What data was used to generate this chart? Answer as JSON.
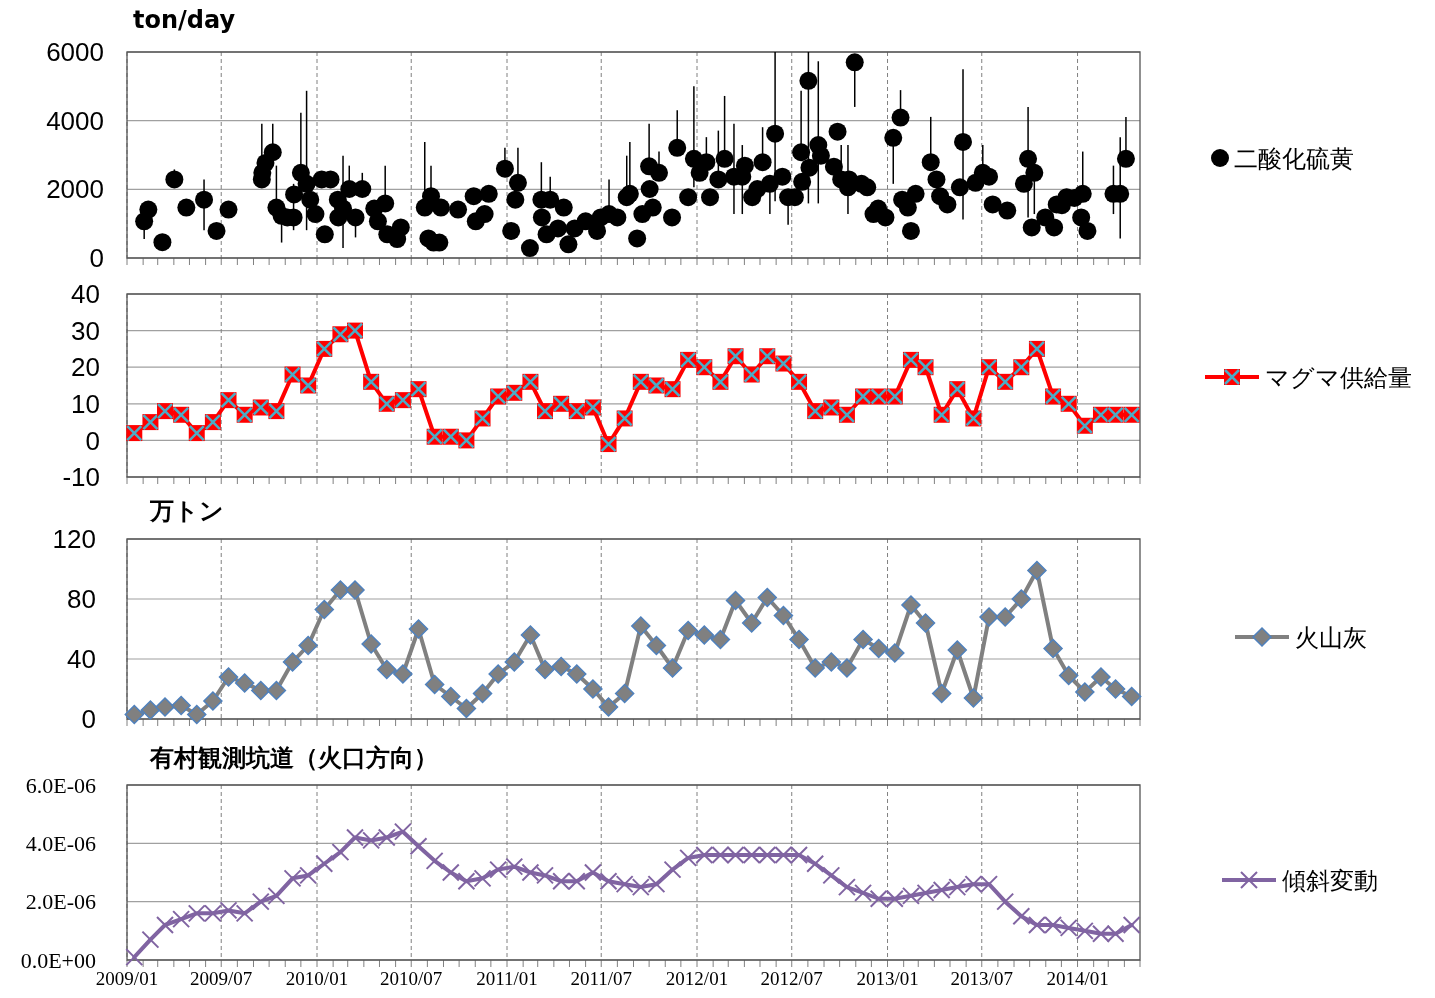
{
  "chart_data": [
    {
      "type": "scatter",
      "ylabel": "ton/day",
      "xlim": [
        "2009-01-01",
        "2014-05-01"
      ],
      "ylim": [
        0,
        6000
      ],
      "yticks": [
        0,
        2000,
        4000,
        6000
      ],
      "xticks": [
        {
          "value": "2009-01-01",
          "label": null
        },
        {
          "value": "2009-07-01",
          "label": null
        },
        {
          "value": "2010-01-01",
          "label": null
        },
        {
          "value": "2010-07-01",
          "label": null
        },
        {
          "value": "2011-01-01",
          "label": null
        },
        {
          "value": "2011-07-01",
          "label": null
        },
        {
          "value": "2012-01-01",
          "label": null
        },
        {
          "value": "2012-07-01",
          "label": null
        },
        {
          "value": "2013-01-01",
          "label": null
        },
        {
          "value": "2013-07-01",
          "label": null
        },
        {
          "value": "2014-01-01",
          "label": null
        }
      ],
      "tick_labels": "y",
      "grid": true,
      "legend": "right",
      "marker": "circle",
      "series": [
        {
          "name": "二酸化硫黄",
          "color": "#000000",
          "x": [
            "2009-02-03",
            "2009-02-11",
            "2009-03-10",
            "2009-04-02",
            "2009-04-25",
            "2009-05-29",
            "2009-06-22",
            "2009-07-15",
            "2009-09-17",
            "2009-09-18",
            "2009-09-24",
            "2009-10-08",
            "2009-10-15",
            "2009-10-25",
            "2009-11-05",
            "2009-11-17",
            "2009-11-18",
            "2009-12-01",
            "2009-12-12",
            "2009-12-19",
            "2009-12-29",
            "2010-01-10",
            "2010-01-16",
            "2010-01-27",
            "2010-02-10",
            "2010-02-11",
            "2010-02-20",
            "2010-03-04",
            "2010-03-16",
            "2010-03-29",
            "2010-04-21",
            "2010-04-28",
            "2010-05-12",
            "2010-05-16",
            "2010-06-04",
            "2010-06-11",
            "2010-07-27",
            "2010-08-03",
            "2010-08-08",
            "2010-08-13",
            "2010-08-24",
            "2010-08-27",
            "2010-09-29",
            "2010-10-29",
            "2010-11-02",
            "2010-11-19",
            "2010-11-27",
            "2010-12-28",
            "2011-01-09",
            "2011-01-17",
            "2011-01-22",
            "2011-02-14",
            "2011-03-08",
            "2011-03-09",
            "2011-03-18",
            "2011-03-25",
            "2011-04-09",
            "2011-04-20",
            "2011-04-29",
            "2011-05-11",
            "2011-06-01",
            "2011-06-23",
            "2011-06-30",
            "2011-07-16",
            "2011-08-01",
            "2011-08-19",
            "2011-08-25",
            "2011-09-08",
            "2011-09-18",
            "2011-10-01",
            "2011-10-02",
            "2011-10-08",
            "2011-10-20",
            "2011-11-14",
            "2011-11-24",
            "2011-12-15",
            "2011-12-26",
            "2012-01-06",
            "2012-01-19",
            "2012-01-26",
            "2012-02-11",
            "2012-02-23",
            "2012-03-12",
            "2012-03-28",
            "2012-04-02",
            "2012-04-16",
            "2012-04-26",
            "2012-05-06",
            "2012-05-20",
            "2012-05-30",
            "2012-06-13",
            "2012-06-24",
            "2012-07-07",
            "2012-07-19",
            "2012-07-21",
            "2012-08-02",
            "2012-08-04",
            "2012-08-21",
            "2012-08-26",
            "2012-09-20",
            "2012-09-27",
            "2012-10-04",
            "2012-10-17",
            "2012-10-19",
            "2012-10-30",
            "2012-11-12",
            "2012-11-23",
            "2012-12-05",
            "2012-12-14",
            "2012-12-28",
            "2013-01-12",
            "2013-01-26",
            "2013-01-29",
            "2013-02-09",
            "2013-02-15",
            "2013-02-24",
            "2013-03-25",
            "2013-04-05",
            "2013-04-12",
            "2013-04-26",
            "2013-05-20",
            "2013-05-26",
            "2013-06-19",
            "2013-07-03",
            "2013-07-15",
            "2013-07-22",
            "2013-08-19",
            "2013-09-20",
            "2013-09-28",
            "2013-10-05",
            "2013-10-10",
            "2013-10-31",
            "2013-11-17",
            "2013-11-22",
            "2013-12-02",
            "2013-12-11",
            "2013-12-26",
            "2014-01-08",
            "2014-01-11",
            "2014-01-20",
            "2014-03-11",
            "2014-03-24",
            "2014-04-04"
          ],
          "values": [
            1070,
            1410,
            460,
            2290,
            1470,
            1700,
            790,
            1410,
            2290,
            2480,
            2770,
            3080,
            1470,
            1230,
            1180,
            1180,
            1850,
            2480,
            2160,
            1700,
            1280,
            2290,
            690,
            2290,
            1700,
            1180,
            1440,
            2010,
            1180,
            2010,
            1440,
            1070,
            1590,
            690,
            550,
            890,
            1470,
            570,
            1800,
            450,
            450,
            1470,
            1410,
            1800,
            1070,
            1280,
            1870,
            2600,
            790,
            1700,
            2190,
            290,
            1700,
            1180,
            690,
            1700,
            860,
            1470,
            400,
            860,
            1070,
            790,
            1180,
            1280,
            1180,
            1770,
            1870,
            570,
            1280,
            2670,
            2010,
            1470,
            2480,
            1180,
            3210,
            1770,
            2890,
            2480,
            2790,
            1770,
            2290,
            2890,
            2370,
            2370,
            2690,
            1770,
            2010,
            2790,
            2160,
            3620,
            2370,
            1770,
            1770,
            3080,
            2220,
            5160,
            2630,
            3290,
            2980,
            2660,
            3680,
            2290,
            2060,
            2290,
            5700,
            2160,
            2060,
            1280,
            1440,
            1180,
            3500,
            4090,
            1700,
            1470,
            790,
            1870,
            2790,
            2290,
            1800,
            1560,
            2060,
            3380,
            2190,
            2480,
            2370,
            1560,
            1380,
            2160,
            2890,
            890,
            2480,
            1180,
            890,
            1560,
            1540,
            1770,
            1750,
            1180,
            1870,
            790,
            1870,
            1870,
            2890
          ],
          "errors": [
            [
              550,
              1070
            ],
            null,
            null,
            [
              2290,
              2580
            ],
            null,
            [
              810,
              2290
            ],
            null,
            null,
            [
              2290,
              3910
            ],
            null,
            null,
            [
              3080,
              3910
            ],
            [
              1470,
              2690
            ],
            [
              450,
              1230
            ],
            null,
            [
              810,
              2160
            ],
            null,
            [
              2480,
              4230
            ],
            [
              810,
              4870
            ],
            null,
            null,
            null,
            null,
            null,
            null,
            null,
            [
              290,
              2980
            ],
            [
              2010,
              2690
            ],
            [
              600,
              1180
            ],
            [
              2010,
              2480
            ],
            null,
            null,
            [
              1590,
              2690
            ],
            null,
            null,
            null,
            [
              1470,
              3380
            ],
            null,
            [
              1800,
              2690
            ],
            null,
            null,
            null,
            null,
            null,
            null,
            null,
            null,
            [
              2600,
              3210
            ],
            null,
            null,
            [
              2190,
              3210
            ],
            null,
            [
              1700,
              2790
            ],
            null,
            null,
            [
              1700,
              2370
            ],
            null,
            null,
            null,
            null,
            null,
            null,
            null,
            [
              1280,
              2290
            ],
            null,
            [
              1770,
              2980
            ],
            [
              1870,
              3380
            ],
            null,
            null,
            [
              2670,
              3910
            ],
            null,
            null,
            [
              2480,
              3100
            ],
            null,
            [
              3210,
              4300
            ],
            null,
            [
              2060,
              5000
            ],
            null,
            [
              2790,
              3520
            ],
            null,
            [
              2290,
              3710
            ],
            [
              2890,
              4720
            ],
            [
              1280,
              3910
            ],
            [
              1280,
              3290
            ],
            null,
            null,
            null,
            [
              2790,
              3810
            ],
            [
              1280,
              2160
            ],
            [
              1650,
              6000
            ],
            null,
            [
              970,
              1770
            ],
            null,
            [
              3080,
              4870
            ],
            null,
            [
              1590,
              6000
            ],
            null,
            [
              1590,
              5730
            ],
            null,
            null,
            null,
            [
              2290,
              3290
            ],
            [
              1280,
              3290
            ],
            null,
            [
              4400,
              5700
            ],
            null,
            null,
            null,
            null,
            null,
            [
              2160,
              3500
            ],
            [
              4090,
              4890
            ],
            null,
            null,
            null,
            null,
            [
              2790,
              4110
            ],
            null,
            null,
            null,
            null,
            [
              1120,
              5500
            ],
            null,
            [
              2480,
              3290
            ],
            null,
            null,
            null,
            null,
            [
              1180,
              4400
            ],
            null,
            [
              1280,
              2480
            ],
            null,
            null,
            null,
            null,
            null,
            null,
            null,
            [
              1870,
              3100
            ],
            null,
            [
              1280,
              2690
            ],
            [
              570,
              3520
            ],
            [
              2890,
              4110
            ]
          ]
        }
      ]
    },
    {
      "type": "line",
      "xlim": [
        "2009-01-01",
        "2014-05-01"
      ],
      "ylim": [
        -10,
        40
      ],
      "yticks": [
        -10,
        0,
        10,
        20,
        30,
        40
      ],
      "xticks": [
        {
          "value": "2009-01-01",
          "label": null
        },
        {
          "value": "2009-07-01",
          "label": null
        },
        {
          "value": "2010-01-01",
          "label": null
        },
        {
          "value": "2010-07-01",
          "label": null
        },
        {
          "value": "2011-01-01",
          "label": null
        },
        {
          "value": "2011-07-01",
          "label": null
        },
        {
          "value": "2012-01-01",
          "label": null
        },
        {
          "value": "2012-07-01",
          "label": null
        },
        {
          "value": "2013-01-01",
          "label": null
        },
        {
          "value": "2013-07-01",
          "label": null
        },
        {
          "value": "2014-01-01",
          "label": null
        }
      ],
      "tick_labels": "y",
      "grid": true,
      "legend": "right",
      "marker": "square",
      "x": [
        "2009-01-15",
        "2009-02-15",
        "2009-03-15",
        "2009-04-15",
        "2009-05-15",
        "2009-06-15",
        "2009-07-15",
        "2009-08-15",
        "2009-09-15",
        "2009-10-15",
        "2009-11-15",
        "2009-12-15",
        "2010-01-15",
        "2010-02-15",
        "2010-03-15",
        "2010-04-15",
        "2010-05-15",
        "2010-06-15",
        "2010-07-15",
        "2010-08-15",
        "2010-09-15",
        "2010-10-15",
        "2010-11-15",
        "2010-12-15",
        "2011-01-15",
        "2011-02-15",
        "2011-03-15",
        "2011-04-15",
        "2011-05-15",
        "2011-06-15",
        "2011-07-15",
        "2011-08-15",
        "2011-09-15",
        "2011-10-15",
        "2011-11-15",
        "2011-12-15",
        "2012-01-15",
        "2012-02-15",
        "2012-03-15",
        "2012-04-15",
        "2012-05-15",
        "2012-06-15",
        "2012-07-15",
        "2012-08-15",
        "2012-09-15",
        "2012-10-15",
        "2012-11-15",
        "2012-12-15",
        "2013-01-15",
        "2013-02-15",
        "2013-03-15",
        "2013-04-15",
        "2013-05-15",
        "2013-06-15",
        "2013-07-15",
        "2013-08-15",
        "2013-09-15",
        "2013-10-15",
        "2013-11-15",
        "2013-12-15",
        "2014-01-15",
        "2014-02-15",
        "2014-03-15",
        "2014-04-15"
      ],
      "series": [
        {
          "name": "マグマ供給量",
          "color": "#ff0000",
          "values": [
            2,
            5,
            8,
            7,
            2,
            5,
            11,
            7,
            9,
            8,
            18,
            15,
            25,
            29,
            30,
            16,
            10,
            11,
            14,
            1,
            1,
            0,
            6,
            12,
            13,
            16,
            8,
            10,
            8,
            9,
            -1,
            6,
            16,
            15,
            14,
            22,
            20,
            16,
            23,
            18,
            23,
            21,
            16,
            8,
            9,
            7,
            12,
            12,
            12,
            22,
            20,
            7,
            14,
            6,
            20,
            16,
            20,
            25,
            12,
            10,
            4,
            7,
            7,
            7
          ]
        }
      ]
    },
    {
      "type": "line",
      "ylabel": "万トン",
      "xlim": [
        "2009-01-01",
        "2014-05-01"
      ],
      "ylim": [
        0,
        120
      ],
      "yticks": [
        0,
        40,
        80,
        120
      ],
      "xticks": [
        {
          "value": "2009-01-01",
          "label": null
        },
        {
          "value": "2009-07-01",
          "label": null
        },
        {
          "value": "2010-01-01",
          "label": null
        },
        {
          "value": "2010-07-01",
          "label": null
        },
        {
          "value": "2011-01-01",
          "label": null
        },
        {
          "value": "2011-07-01",
          "label": null
        },
        {
          "value": "2012-01-01",
          "label": null
        },
        {
          "value": "2012-07-01",
          "label": null
        },
        {
          "value": "2013-01-01",
          "label": null
        },
        {
          "value": "2013-07-01",
          "label": null
        },
        {
          "value": "2014-01-01",
          "label": null
        }
      ],
      "tick_labels": "y",
      "grid": true,
      "legend": "right",
      "marker": "diamond",
      "x": [
        "2009-01-15",
        "2009-02-15",
        "2009-03-15",
        "2009-04-15",
        "2009-05-15",
        "2009-06-15",
        "2009-07-15",
        "2009-08-15",
        "2009-09-15",
        "2009-10-15",
        "2009-11-15",
        "2009-12-15",
        "2010-01-15",
        "2010-02-15",
        "2010-03-15",
        "2010-04-15",
        "2010-05-15",
        "2010-06-15",
        "2010-07-15",
        "2010-08-15",
        "2010-09-15",
        "2010-10-15",
        "2010-11-15",
        "2010-12-15",
        "2011-01-15",
        "2011-02-15",
        "2011-03-15",
        "2011-04-15",
        "2011-05-15",
        "2011-06-15",
        "2011-07-15",
        "2011-08-15",
        "2011-09-15",
        "2011-10-15",
        "2011-11-15",
        "2011-12-15",
        "2012-01-15",
        "2012-02-15",
        "2012-03-15",
        "2012-04-15",
        "2012-05-15",
        "2012-06-15",
        "2012-07-15",
        "2012-08-15",
        "2012-09-15",
        "2012-10-15",
        "2012-11-15",
        "2012-12-15",
        "2013-01-15",
        "2013-02-15",
        "2013-03-15",
        "2013-04-15",
        "2013-05-15",
        "2013-06-15",
        "2013-07-15",
        "2013-08-15",
        "2013-09-15",
        "2013-10-15",
        "2013-11-15",
        "2013-12-15",
        "2014-01-15",
        "2014-02-15",
        "2014-03-15",
        "2014-04-15"
      ],
      "series": [
        {
          "name": "火山灰",
          "color": "#808080",
          "values": [
            3,
            6,
            8,
            9,
            3,
            12,
            28,
            24,
            19,
            19,
            38,
            49,
            73,
            86,
            86,
            50,
            33,
            30,
            60,
            23,
            15,
            7,
            17,
            30,
            38,
            56,
            33,
            35,
            30,
            20,
            8,
            17,
            62,
            49,
            34,
            59,
            56,
            53,
            79,
            64,
            81,
            69,
            53,
            34,
            38,
            34,
            53,
            47,
            44,
            76,
            64,
            17,
            46,
            14,
            68,
            68,
            80,
            99,
            47,
            29,
            18,
            28,
            20,
            15
          ]
        }
      ]
    },
    {
      "type": "line",
      "title": "有村観測坑道（火口方向）",
      "xlim": [
        "2009-01-01",
        "2014-05-01"
      ],
      "ylim": [
        0,
        6e-06
      ],
      "yticks": [
        {
          "value": 0,
          "label": "0.0E+00"
        },
        {
          "value": 2e-06,
          "label": "2.0E-06"
        },
        {
          "value": 4e-06,
          "label": "4.0E-06"
        },
        {
          "value": 6e-06,
          "label": "6.0E-06"
        }
      ],
      "xticks": [
        {
          "value": "2009-01-01",
          "label": "2009/01"
        },
        {
          "value": "2009-07-01",
          "label": "2009/07"
        },
        {
          "value": "2010-01-01",
          "label": "2010/01"
        },
        {
          "value": "2010-07-01",
          "label": "2010/07"
        },
        {
          "value": "2011-01-01",
          "label": "2011/01"
        },
        {
          "value": "2011-07-01",
          "label": "2011/07"
        },
        {
          "value": "2012-01-01",
          "label": "2012/01"
        },
        {
          "value": "2012-07-01",
          "label": "2012/07"
        },
        {
          "value": "2013-01-01",
          "label": "2013/01"
        },
        {
          "value": "2013-07-01",
          "label": "2013/07"
        },
        {
          "value": "2014-01-01",
          "label": "2014/01"
        }
      ],
      "grid": true,
      "legend": "right",
      "marker": "cross",
      "x": [
        "2009-01-15",
        "2009-02-15",
        "2009-03-15",
        "2009-04-15",
        "2009-05-15",
        "2009-06-15",
        "2009-07-15",
        "2009-08-15",
        "2009-09-15",
        "2009-10-15",
        "2009-11-15",
        "2009-12-15",
        "2010-01-15",
        "2010-02-15",
        "2010-03-15",
        "2010-04-15",
        "2010-05-15",
        "2010-06-15",
        "2010-07-15",
        "2010-08-15",
        "2010-09-15",
        "2010-10-15",
        "2010-11-15",
        "2010-12-15",
        "2011-01-15",
        "2011-02-15",
        "2011-03-15",
        "2011-04-15",
        "2011-05-15",
        "2011-06-15",
        "2011-07-15",
        "2011-08-15",
        "2011-09-15",
        "2011-10-15",
        "2011-11-15",
        "2011-12-15",
        "2012-01-15",
        "2012-02-15",
        "2012-03-15",
        "2012-04-15",
        "2012-05-15",
        "2012-06-15",
        "2012-07-15",
        "2012-08-15",
        "2012-09-15",
        "2012-10-15",
        "2012-11-15",
        "2012-12-15",
        "2013-01-15",
        "2013-02-15",
        "2013-03-15",
        "2013-04-15",
        "2013-05-15",
        "2013-06-15",
        "2013-07-15",
        "2013-08-15",
        "2013-09-15",
        "2013-10-15",
        "2013-11-15",
        "2013-12-15",
        "2014-01-15",
        "2014-02-15",
        "2014-03-15",
        "2014-04-15"
      ],
      "series": [
        {
          "name": "傾斜変動",
          "color": "#8064a2",
          "values": [
            1e-07,
            7e-07,
            1.2e-06,
            1.4e-06,
            1.6e-06,
            1.6e-06,
            1.7e-06,
            1.6e-06,
            2e-06,
            2.2e-06,
            2.8e-06,
            2.9e-06,
            3.3e-06,
            3.7e-06,
            4.2e-06,
            4.1e-06,
            4.2e-06,
            4.4e-06,
            3.9e-06,
            3.4e-06,
            3e-06,
            2.7e-06,
            2.8e-06,
            3.1e-06,
            3.2e-06,
            3e-06,
            2.9e-06,
            2.7e-06,
            2.7e-06,
            3e-06,
            2.7e-06,
            2.6e-06,
            2.5e-06,
            2.6e-06,
            3.1e-06,
            3.5e-06,
            3.6e-06,
            3.6e-06,
            3.6e-06,
            3.6e-06,
            3.6e-06,
            3.6e-06,
            3.6e-06,
            3.3e-06,
            2.9e-06,
            2.5e-06,
            2.3e-06,
            2.1e-06,
            2.1e-06,
            2.2e-06,
            2.3e-06,
            2.4e-06,
            2.5e-06,
            2.6e-06,
            2.6e-06,
            2e-06,
            1.5e-06,
            1.2e-06,
            1.2e-06,
            1.1e-06,
            1e-06,
            9e-07,
            9e-07,
            1.2e-06
          ]
        }
      ]
    }
  ]
}
